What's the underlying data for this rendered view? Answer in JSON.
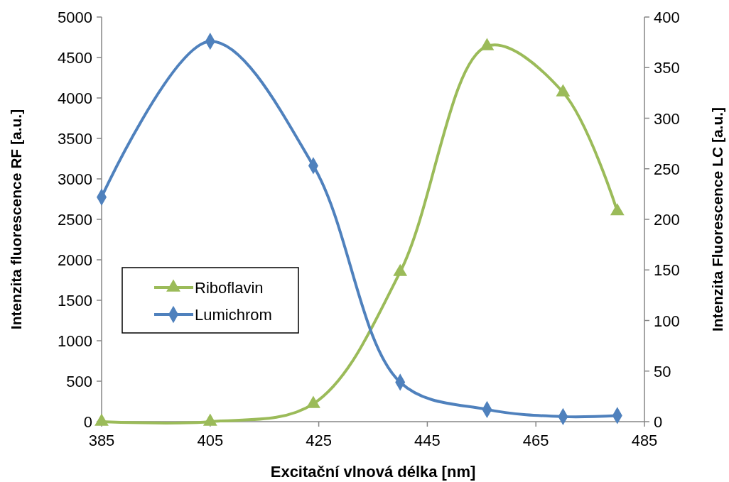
{
  "chart_data": {
    "type": "line",
    "xlabel": "Excitační vlnová délka [nm]",
    "ylabel": "Intenzita fluorescence RF [a.u.]",
    "y2label": "Intenzita Fluorescence LC [a.u.]",
    "x": [
      385,
      405,
      424,
      440,
      456,
      470,
      480
    ],
    "xlim": [
      385,
      485
    ],
    "xticks": [
      385,
      405,
      425,
      445,
      465,
      485
    ],
    "ylim": [
      0,
      5000
    ],
    "yticks": [
      0,
      500,
      1000,
      1500,
      2000,
      2500,
      3000,
      3500,
      4000,
      4500,
      5000
    ],
    "y2lim": [
      0,
      400
    ],
    "y2ticks": [
      0,
      50,
      100,
      150,
      200,
      250,
      300,
      350,
      400
    ],
    "grid": false,
    "legend": "left",
    "series": [
      {
        "name": "Riboflavin",
        "color": "#9bbb59",
        "marker": "triangle",
        "values": [
          0,
          0,
          220,
          1850,
          4640,
          4070,
          2600
        ]
      },
      {
        "name": "Lumichrom",
        "color": "#4f81bd",
        "marker": "diamond",
        "axis": "y2",
        "values": [
          222,
          376,
          253,
          39,
          12,
          5,
          6
        ]
      }
    ]
  }
}
